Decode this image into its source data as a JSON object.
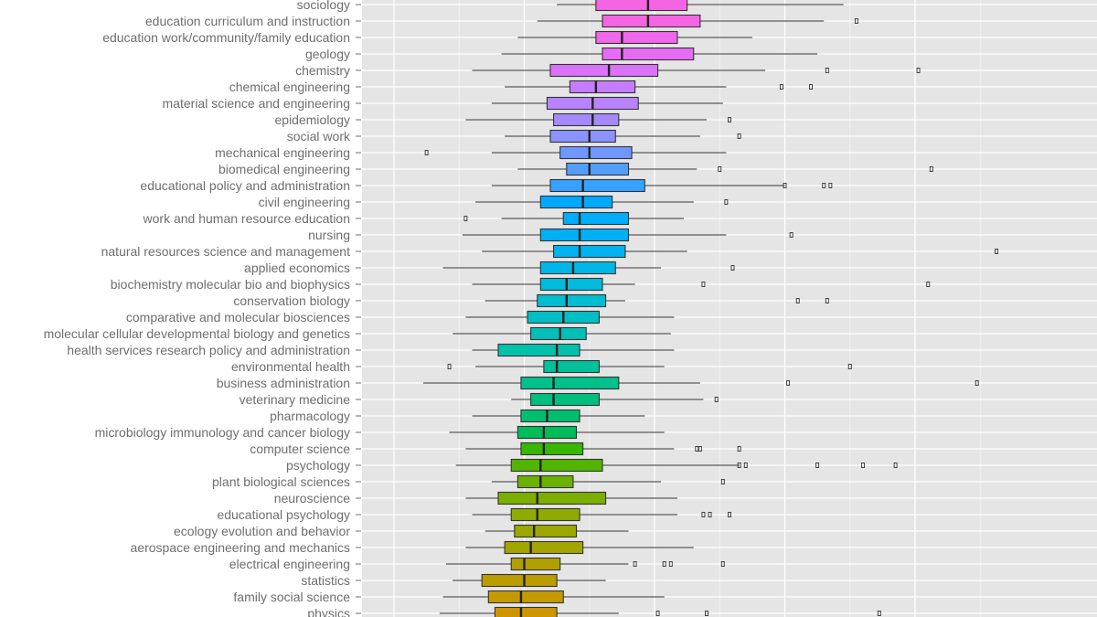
{
  "chart_data": {
    "type": "boxplot",
    "orientation": "horizontal",
    "xlim": [
      0,
      100
    ],
    "grid": true,
    "categories": [
      {
        "name": "sociology",
        "color": "#F564E3",
        "min": 33,
        "q1": 39,
        "median": 47,
        "q3": 53,
        "max": 77,
        "outliers": []
      },
      {
        "name": "education curriculum and instruction",
        "color": "#F564E3",
        "min": 30,
        "q1": 40,
        "median": 47,
        "q3": 55,
        "max": 74,
        "outliers": [
          79
        ]
      },
      {
        "name": "education work/community/family education",
        "color": "#EF67EB",
        "min": 27,
        "q1": 39,
        "median": 43,
        "q3": 51.5,
        "max": 63,
        "outliers": []
      },
      {
        "name": "geology",
        "color": "#E76BF3",
        "min": 24.5,
        "q1": 40,
        "median": 43,
        "q3": 54,
        "max": 73,
        "outliers": []
      },
      {
        "name": "chemistry",
        "color": "#DC71FA",
        "min": 20,
        "q1": 32,
        "median": 41,
        "q3": 48.5,
        "max": 65,
        "outliers": [
          74.5,
          88.5
        ]
      },
      {
        "name": "chemical engineering",
        "color": "#C77CFF",
        "min": 25,
        "q1": 35,
        "median": 39,
        "q3": 45,
        "max": 59,
        "outliers": [
          67.5,
          72
        ]
      },
      {
        "name": "material science and engineering",
        "color": "#B983FF",
        "min": 23,
        "q1": 31.5,
        "median": 38.5,
        "q3": 45.5,
        "max": 58.5,
        "outliers": []
      },
      {
        "name": "epidemiology",
        "color": "#A58AFF",
        "min": 19,
        "q1": 32.5,
        "median": 38.5,
        "q3": 42.5,
        "max": 56,
        "outliers": [
          59.5
        ]
      },
      {
        "name": "social work",
        "color": "#8B93FF",
        "min": 25,
        "q1": 32,
        "median": 38,
        "q3": 42,
        "max": 55,
        "outliers": [
          61
        ]
      },
      {
        "name": "mechanical engineering",
        "color": "#7097FF",
        "min": 23,
        "q1": 33.5,
        "median": 38,
        "q3": 44.5,
        "max": 59,
        "outliers": [
          13
        ]
      },
      {
        "name": "biomedical engineering",
        "color": "#529EFF",
        "min": 27,
        "q1": 34.5,
        "median": 38,
        "q3": 44,
        "max": 54.5,
        "outliers": [
          58,
          90.5
        ]
      },
      {
        "name": "educational policy and administration",
        "color": "#35A2FF",
        "min": 23,
        "q1": 32,
        "median": 37,
        "q3": 46.5,
        "max": 68,
        "outliers": [
          68,
          74,
          75
        ]
      },
      {
        "name": "civil engineering",
        "color": "#00A9FF",
        "min": 20.5,
        "q1": 30.5,
        "median": 37,
        "q3": 41.5,
        "max": 54,
        "outliers": [
          59
        ]
      },
      {
        "name": "work and human resource education",
        "color": "#00ADFA",
        "min": 24.5,
        "q1": 34,
        "median": 36.5,
        "q3": 44,
        "max": 52.5,
        "outliers": [
          19
        ]
      },
      {
        "name": "nursing",
        "color": "#00B0F6",
        "min": 18.5,
        "q1": 30.5,
        "median": 36.5,
        "q3": 44,
        "max": 59,
        "outliers": [
          69
        ]
      },
      {
        "name": "natural resources science and management",
        "color": "#00B4EF",
        "min": 21.5,
        "q1": 32.5,
        "median": 36.5,
        "q3": 43.5,
        "max": 53,
        "outliers": [
          100.5
        ]
      },
      {
        "name": "applied economics",
        "color": "#00B7E7",
        "min": 15.5,
        "q1": 30.5,
        "median": 35.5,
        "q3": 42,
        "max": 49,
        "outliers": [
          60
        ]
      },
      {
        "name": "biochemistry molecular bio and biophysics",
        "color": "#00BBDB",
        "min": 20,
        "q1": 30.5,
        "median": 34.5,
        "q3": 40,
        "max": 45,
        "outliers": [
          55.5,
          90
        ]
      },
      {
        "name": "conservation biology",
        "color": "#00BDD0",
        "min": 22,
        "q1": 30,
        "median": 34.5,
        "q3": 40.5,
        "max": 43.5,
        "outliers": [
          70,
          74.5
        ]
      },
      {
        "name": "comparative and molecular biosciences",
        "color": "#00BFC4",
        "min": 19,
        "q1": 28.5,
        "median": 34,
        "q3": 39.5,
        "max": 51,
        "outliers": []
      },
      {
        "name": "molecular cellular developmental biology and genetics",
        "color": "#00C0B8",
        "min": 17,
        "q1": 29,
        "median": 33.5,
        "q3": 37.5,
        "max": 50.5,
        "outliers": []
      },
      {
        "name": "health services research policy and administration",
        "color": "#00C1A9",
        "min": 20,
        "q1": 24,
        "median": 33,
        "q3": 36.5,
        "max": 51,
        "outliers": []
      },
      {
        "name": "environmental health",
        "color": "#00C19A",
        "min": 20.5,
        "q1": 31,
        "median": 33,
        "q3": 39.5,
        "max": 49.5,
        "outliers": [
          16.5,
          78
        ]
      },
      {
        "name": "business administration",
        "color": "#00C08B",
        "min": 12.5,
        "q1": 27.5,
        "median": 32.5,
        "q3": 42.5,
        "max": 55,
        "outliers": [
          68.5,
          97.5
        ]
      },
      {
        "name": "veterinary medicine",
        "color": "#00BE7D",
        "min": 26,
        "q1": 29,
        "median": 32.5,
        "q3": 39.5,
        "max": 55.5,
        "outliers": [
          57.5
        ]
      },
      {
        "name": "pharmacology",
        "color": "#00BE70",
        "min": 20,
        "q1": 27.5,
        "median": 31.5,
        "q3": 36.5,
        "max": 46.5,
        "outliers": []
      },
      {
        "name": "microbiology immunology and cancer biology",
        "color": "#00BC59",
        "min": 16.5,
        "q1": 27,
        "median": 31,
        "q3": 36,
        "max": 49.5,
        "outliers": []
      },
      {
        "name": "computer science",
        "color": "#39B600",
        "min": 19,
        "q1": 27.5,
        "median": 31,
        "q3": 37,
        "max": 51,
        "outliers": [
          54.5,
          55,
          61
        ]
      },
      {
        "name": "psychology",
        "color": "#53B400",
        "min": 17.5,
        "q1": 26,
        "median": 30.5,
        "q3": 40,
        "max": 61,
        "outliers": [
          61,
          62,
          73,
          80,
          85
        ]
      },
      {
        "name": "plant biological sciences",
        "color": "#6BB100",
        "min": 23,
        "q1": 27,
        "median": 30.5,
        "q3": 35.5,
        "max": 49,
        "outliers": [
          58.5
        ]
      },
      {
        "name": "neuroscience",
        "color": "#7CAE00",
        "min": 19,
        "q1": 24,
        "median": 30,
        "q3": 40.5,
        "max": 51.5,
        "outliers": []
      },
      {
        "name": "educational psychology",
        "color": "#8EAB00",
        "min": 20,
        "q1": 26,
        "median": 30,
        "q3": 36.5,
        "max": 51.5,
        "outliers": [
          55.5,
          56.5,
          59.5
        ]
      },
      {
        "name": "ecology evolution and behavior",
        "color": "#9AA800",
        "min": 22,
        "q1": 26.5,
        "median": 29.5,
        "q3": 36,
        "max": 44,
        "outliers": []
      },
      {
        "name": "aerospace engineering and mechanics",
        "color": "#A3A500",
        "min": 19,
        "q1": 25,
        "median": 29,
        "q3": 37,
        "max": 54,
        "outliers": []
      },
      {
        "name": "electrical engineering",
        "color": "#B0A100",
        "min": 16,
        "q1": 26,
        "median": 28,
        "q3": 33.5,
        "max": 44,
        "outliers": [
          45,
          49.5,
          50.5,
          58.5
        ]
      },
      {
        "name": "statistics",
        "color": "#BB9D00",
        "min": 17,
        "q1": 21.5,
        "median": 28,
        "q3": 33,
        "max": 40.5,
        "outliers": []
      },
      {
        "name": "family social science",
        "color": "#C49A00",
        "min": 15.5,
        "q1": 22.5,
        "median": 27.5,
        "q3": 34,
        "max": 49.5,
        "outliers": []
      },
      {
        "name": "physics",
        "color": "#CD9600",
        "min": 15,
        "q1": 23.5,
        "median": 27.5,
        "q3": 33,
        "max": 42.5,
        "outliers": [
          48.5,
          56,
          82.5
        ]
      }
    ]
  }
}
